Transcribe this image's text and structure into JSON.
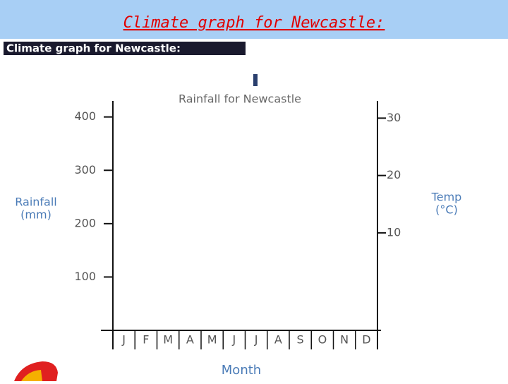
{
  "slide_title": "Climate graph for Newcastle:",
  "chart_data": {
    "type": "bar",
    "title": "Climate graph for Newcastle:",
    "subtitle": "Rainfall for Newcastle",
    "categories": [
      "J",
      "F",
      "M",
      "A",
      "M",
      "J",
      "J",
      "A",
      "S",
      "O",
      "N",
      "D"
    ],
    "series": [],
    "ylabel": [
      "Rainfall",
      "(mm)"
    ],
    "y2label": [
      "Temp",
      "(°C)"
    ],
    "xlabel": "Month",
    "ylim": [
      0,
      430
    ],
    "yticks": [
      100,
      200,
      300,
      400
    ],
    "y2lim": [
      -7,
      33
    ],
    "y2ticks": [
      10,
      20,
      30
    ]
  }
}
